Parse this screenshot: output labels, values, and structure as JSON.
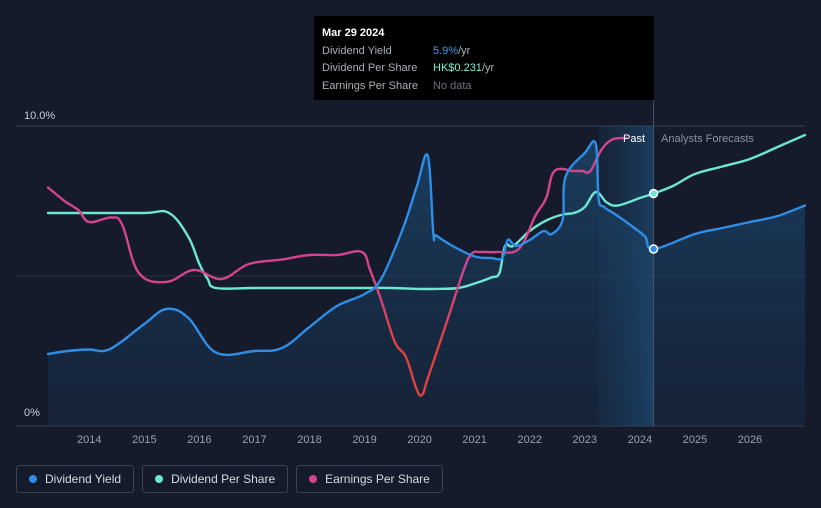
{
  "tooltip": {
    "date": "Mar 29 2024",
    "rows": [
      {
        "label": "Dividend Yield",
        "value": "5.9%",
        "unit": " /yr"
      },
      {
        "label": "Dividend Per Share",
        "value": "HK$0.231",
        "unit": " /yr"
      },
      {
        "label": "Earnings Per Share",
        "value": "No data",
        "unit": ""
      }
    ]
  },
  "legend": [
    {
      "label": "Dividend Yield",
      "color": "#2e8ee6"
    },
    {
      "label": "Dividend Per Share",
      "color": "#6ee7d2"
    },
    {
      "label": "Earnings Per Share",
      "color": "#d2458c"
    }
  ],
  "chart_data": {
    "type": "line",
    "y_tick_labels": [
      "10.0%",
      "0%"
    ],
    "ylim": [
      0,
      10
    ],
    "xlim": [
      2013.25,
      2027.0
    ],
    "x_ticks": [
      2014,
      2015,
      2016,
      2017,
      2018,
      2019,
      2020,
      2021,
      2022,
      2023,
      2024,
      2025,
      2026
    ],
    "x_tick_labels": [
      "2014",
      "2015",
      "2016",
      "2017",
      "2018",
      "2019",
      "2020",
      "2021",
      "2022",
      "2023",
      "2024",
      "2025",
      "2026"
    ],
    "past_label": "Past",
    "forecast_label": "Analysts Forecasts",
    "past_region_start": 2023.25,
    "forecast_start": 2024.25,
    "marker_x": 2024.25,
    "series": [
      {
        "name": "Dividend Yield",
        "color": "#2e8ee6",
        "x": [
          2013.25,
          2013.6,
          2014.0,
          2014.25,
          2014.5,
          2015.0,
          2015.4,
          2015.8,
          2016.3,
          2017.0,
          2017.5,
          2018.0,
          2018.5,
          2019.0,
          2019.3,
          2019.7,
          2019.95,
          2020.15,
          2020.25,
          2020.3,
          2020.6,
          2021.0,
          2021.3,
          2021.5,
          2021.6,
          2021.75,
          2022.0,
          2022.25,
          2022.4,
          2022.6,
          2022.65,
          2023.0,
          2023.2,
          2023.25,
          2023.35,
          2023.6,
          2023.9,
          2024.1,
          2024.25,
          2025.0,
          2025.5,
          2026.0,
          2026.5,
          2027.0
        ],
        "y": [
          2.4,
          2.5,
          2.55,
          2.5,
          2.7,
          3.4,
          3.9,
          3.6,
          2.45,
          2.5,
          2.6,
          3.3,
          4.0,
          4.4,
          4.9,
          6.6,
          8.0,
          9.0,
          6.4,
          6.35,
          6.0,
          5.65,
          5.6,
          5.6,
          6.2,
          6.0,
          6.2,
          6.5,
          6.4,
          6.9,
          8.3,
          9.1,
          9.4,
          7.6,
          7.3,
          7.0,
          6.6,
          6.3,
          5.9,
          6.4,
          6.6,
          6.8,
          7.0,
          7.35
        ]
      },
      {
        "name": "Dividend Per Share",
        "color": "#6ee7d2",
        "x": [
          2013.25,
          2014.0,
          2015.0,
          2015.45,
          2015.8,
          2016.0,
          2016.15,
          2016.3,
          2017.0,
          2018.0,
          2019.0,
          2019.5,
          2020.0,
          2020.3,
          2020.7,
          2021.0,
          2021.3,
          2021.45,
          2021.55,
          2021.7,
          2022.0,
          2022.3,
          2022.6,
          2022.8,
          2023.0,
          2023.2,
          2023.4,
          2023.6,
          2024.0,
          2024.25,
          2024.6,
          2025.0,
          2025.5,
          2026.0,
          2026.5,
          2027.0
        ],
        "y": [
          7.1,
          7.1,
          7.1,
          7.1,
          6.3,
          5.4,
          4.9,
          4.6,
          4.6,
          4.6,
          4.6,
          4.6,
          4.57,
          4.57,
          4.6,
          4.75,
          4.95,
          5.1,
          6.0,
          6.0,
          6.5,
          6.85,
          7.05,
          7.1,
          7.3,
          7.8,
          7.45,
          7.35,
          7.6,
          7.75,
          8.0,
          8.4,
          8.65,
          8.9,
          9.3,
          9.7
        ]
      },
      {
        "name": "Earnings Per Share",
        "color": "#d2458c",
        "color_low": "#e04040",
        "x": [
          2013.25,
          2013.55,
          2013.8,
          2014.0,
          2014.4,
          2014.6,
          2014.9,
          2015.4,
          2015.9,
          2016.4,
          2016.9,
          2017.5,
          2018.0,
          2018.5,
          2018.95,
          2019.1,
          2019.3,
          2019.55,
          2019.75,
          2019.95,
          2020.05,
          2020.15,
          2020.5,
          2020.8,
          2020.95,
          2021.1,
          2021.4,
          2021.8,
          2022.1,
          2022.3,
          2022.45,
          2022.8,
          2022.95,
          2023.1,
          2023.3,
          2023.5,
          2023.75
        ],
        "y": [
          7.95,
          7.5,
          7.2,
          6.8,
          6.95,
          6.7,
          5.1,
          4.8,
          5.2,
          4.9,
          5.4,
          5.55,
          5.7,
          5.7,
          5.8,
          5.2,
          4.2,
          2.8,
          2.3,
          1.2,
          1.05,
          1.6,
          3.5,
          5.2,
          5.75,
          5.8,
          5.8,
          5.9,
          7.0,
          7.6,
          8.5,
          8.5,
          8.5,
          8.5,
          9.2,
          9.55,
          9.6
        ]
      }
    ]
  }
}
